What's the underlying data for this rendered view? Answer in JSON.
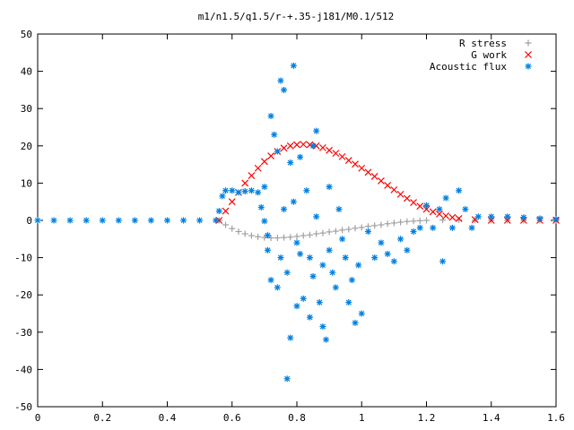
{
  "chart_data": {
    "type": "scatter",
    "title": "m1/n1.5/q1.5/r-+.35-j181/M0.1/512",
    "xlabel": "",
    "ylabel": "",
    "xlim": [
      0,
      1.6
    ],
    "ylim": [
      -50,
      50
    ],
    "x_ticks": [
      "0",
      "0.2",
      "0.4",
      "0.6",
      "0.8",
      "1",
      "1.2",
      "1.4",
      "1.6"
    ],
    "y_ticks": [
      "50",
      "40",
      "30",
      "20",
      "10",
      "0",
      "-10",
      "-20",
      "-30",
      "-40",
      "-50"
    ],
    "grid": false,
    "legend_position": "top-right",
    "series": [
      {
        "name": "R stress",
        "marker": "plus",
        "color": "#a0a0a0",
        "points": [
          [
            0.56,
            0
          ],
          [
            0.58,
            -1.2
          ],
          [
            0.6,
            -2.2
          ],
          [
            0.62,
            -3
          ],
          [
            0.64,
            -3.6
          ],
          [
            0.66,
            -4.1
          ],
          [
            0.68,
            -4.4
          ],
          [
            0.7,
            -4.6
          ],
          [
            0.72,
            -4.7
          ],
          [
            0.74,
            -4.7
          ],
          [
            0.76,
            -4.6
          ],
          [
            0.78,
            -4.5
          ],
          [
            0.8,
            -4.3
          ],
          [
            0.82,
            -4.1
          ],
          [
            0.84,
            -3.9
          ],
          [
            0.86,
            -3.6
          ],
          [
            0.88,
            -3.4
          ],
          [
            0.9,
            -3.1
          ],
          [
            0.92,
            -2.9
          ],
          [
            0.94,
            -2.6
          ],
          [
            0.96,
            -2.4
          ],
          [
            0.98,
            -2.1
          ],
          [
            1,
            -1.9
          ],
          [
            1.02,
            -1.6
          ],
          [
            1.04,
            -1.4
          ],
          [
            1.06,
            -1.2
          ],
          [
            1.08,
            -0.9
          ],
          [
            1.1,
            -0.7
          ],
          [
            1.12,
            -0.5
          ],
          [
            1.14,
            -0.3
          ],
          [
            1.16,
            -0.2
          ],
          [
            1.18,
            -0.1
          ],
          [
            1.2,
            0
          ],
          [
            1.25,
            0.1
          ],
          [
            1.3,
            0.1
          ],
          [
            1.35,
            0.05
          ],
          [
            1.4,
            0
          ],
          [
            1.45,
            0
          ],
          [
            1.5,
            0
          ],
          [
            1.55,
            0
          ],
          [
            1.6,
            0
          ]
        ]
      },
      {
        "name": "G work",
        "marker": "cross",
        "color": "#ff0000",
        "points": [
          [
            0.56,
            0
          ],
          [
            0.58,
            2.5
          ],
          [
            0.6,
            5
          ],
          [
            0.62,
            7.5
          ],
          [
            0.64,
            10
          ],
          [
            0.66,
            12
          ],
          [
            0.68,
            14
          ],
          [
            0.7,
            15.8
          ],
          [
            0.72,
            17.3
          ],
          [
            0.74,
            18.5
          ],
          [
            0.76,
            19.4
          ],
          [
            0.78,
            20
          ],
          [
            0.8,
            20.3
          ],
          [
            0.82,
            20.4
          ],
          [
            0.84,
            20.3
          ],
          [
            0.86,
            20
          ],
          [
            0.88,
            19.5
          ],
          [
            0.9,
            18.8
          ],
          [
            0.92,
            18
          ],
          [
            0.94,
            17.1
          ],
          [
            0.96,
            16.1
          ],
          [
            0.98,
            15.1
          ],
          [
            1,
            14
          ],
          [
            1.02,
            12.9
          ],
          [
            1.04,
            11.8
          ],
          [
            1.06,
            10.6
          ],
          [
            1.08,
            9.4
          ],
          [
            1.1,
            8.2
          ],
          [
            1.12,
            7
          ],
          [
            1.14,
            5.9
          ],
          [
            1.16,
            4.8
          ],
          [
            1.18,
            3.8
          ],
          [
            1.2,
            3
          ],
          [
            1.22,
            2.3
          ],
          [
            1.24,
            1.7
          ],
          [
            1.26,
            1.2
          ],
          [
            1.28,
            0.8
          ],
          [
            1.3,
            0.5
          ],
          [
            1.35,
            0.2
          ],
          [
            1.4,
            0
          ],
          [
            1.45,
            0
          ],
          [
            1.5,
            0
          ],
          [
            1.55,
            0
          ],
          [
            1.6,
            0
          ]
        ]
      },
      {
        "name": "Acoustic flux",
        "marker": "star",
        "color": "#0080e0",
        "points": [
          [
            0,
            0
          ],
          [
            0.05,
            0
          ],
          [
            0.1,
            0
          ],
          [
            0.15,
            0
          ],
          [
            0.2,
            0
          ],
          [
            0.25,
            0
          ],
          [
            0.3,
            0
          ],
          [
            0.35,
            0
          ],
          [
            0.4,
            0
          ],
          [
            0.45,
            0
          ],
          [
            0.5,
            0
          ],
          [
            0.55,
            0
          ],
          [
            0.56,
            2.5
          ],
          [
            0.57,
            6.5
          ],
          [
            0.58,
            8
          ],
          [
            0.6,
            8
          ],
          [
            0.62,
            7.5
          ],
          [
            0.64,
            7.8
          ],
          [
            0.66,
            8
          ],
          [
            0.68,
            7.5
          ],
          [
            0.7,
            9
          ],
          [
            0.69,
            3.5
          ],
          [
            0.7,
            -0.2
          ],
          [
            0.71,
            -4
          ],
          [
            0.71,
            -8
          ],
          [
            0.72,
            -16
          ],
          [
            0.72,
            28
          ],
          [
            0.73,
            23
          ],
          [
            0.74,
            18.5
          ],
          [
            0.74,
            -18
          ],
          [
            0.75,
            37.5
          ],
          [
            0.75,
            -10
          ],
          [
            0.76,
            35
          ],
          [
            0.76,
            3
          ],
          [
            0.77,
            -42.5
          ],
          [
            0.77,
            -14
          ],
          [
            0.78,
            15.5
          ],
          [
            0.78,
            -31.5
          ],
          [
            0.79,
            41.5
          ],
          [
            0.79,
            5
          ],
          [
            0.8,
            -6
          ],
          [
            0.8,
            -23
          ],
          [
            0.81,
            17
          ],
          [
            0.81,
            -9
          ],
          [
            0.82,
            -21
          ],
          [
            0.83,
            8
          ],
          [
            0.84,
            -10
          ],
          [
            0.84,
            -26
          ],
          [
            0.85,
            20
          ],
          [
            0.85,
            -15
          ],
          [
            0.86,
            24
          ],
          [
            0.86,
            1
          ],
          [
            0.87,
            -22
          ],
          [
            0.88,
            -12
          ],
          [
            0.88,
            -28.5
          ],
          [
            0.89,
            -32
          ],
          [
            0.9,
            -8
          ],
          [
            0.9,
            9
          ],
          [
            0.91,
            -14
          ],
          [
            0.92,
            -18
          ],
          [
            0.93,
            3
          ],
          [
            0.94,
            -5
          ],
          [
            0.95,
            -10
          ],
          [
            0.96,
            -22
          ],
          [
            0.97,
            -16
          ],
          [
            0.98,
            -27.5
          ],
          [
            0.99,
            -12
          ],
          [
            1,
            -25
          ],
          [
            1.02,
            -3
          ],
          [
            1.04,
            -10
          ],
          [
            1.06,
            -6
          ],
          [
            1.08,
            -9
          ],
          [
            1.1,
            -11
          ],
          [
            1.12,
            -5
          ],
          [
            1.14,
            -8
          ],
          [
            1.16,
            -3
          ],
          [
            1.18,
            -2
          ],
          [
            1.2,
            4
          ],
          [
            1.22,
            -2
          ],
          [
            1.24,
            3
          ],
          [
            1.25,
            -11
          ],
          [
            1.26,
            6
          ],
          [
            1.28,
            -2
          ],
          [
            1.3,
            8
          ],
          [
            1.32,
            3
          ],
          [
            1.34,
            -2
          ],
          [
            1.36,
            1
          ],
          [
            1.4,
            1
          ],
          [
            1.45,
            1
          ],
          [
            1.5,
            0.8
          ],
          [
            1.55,
            0.5
          ],
          [
            1.6,
            0.3
          ]
        ]
      }
    ]
  }
}
